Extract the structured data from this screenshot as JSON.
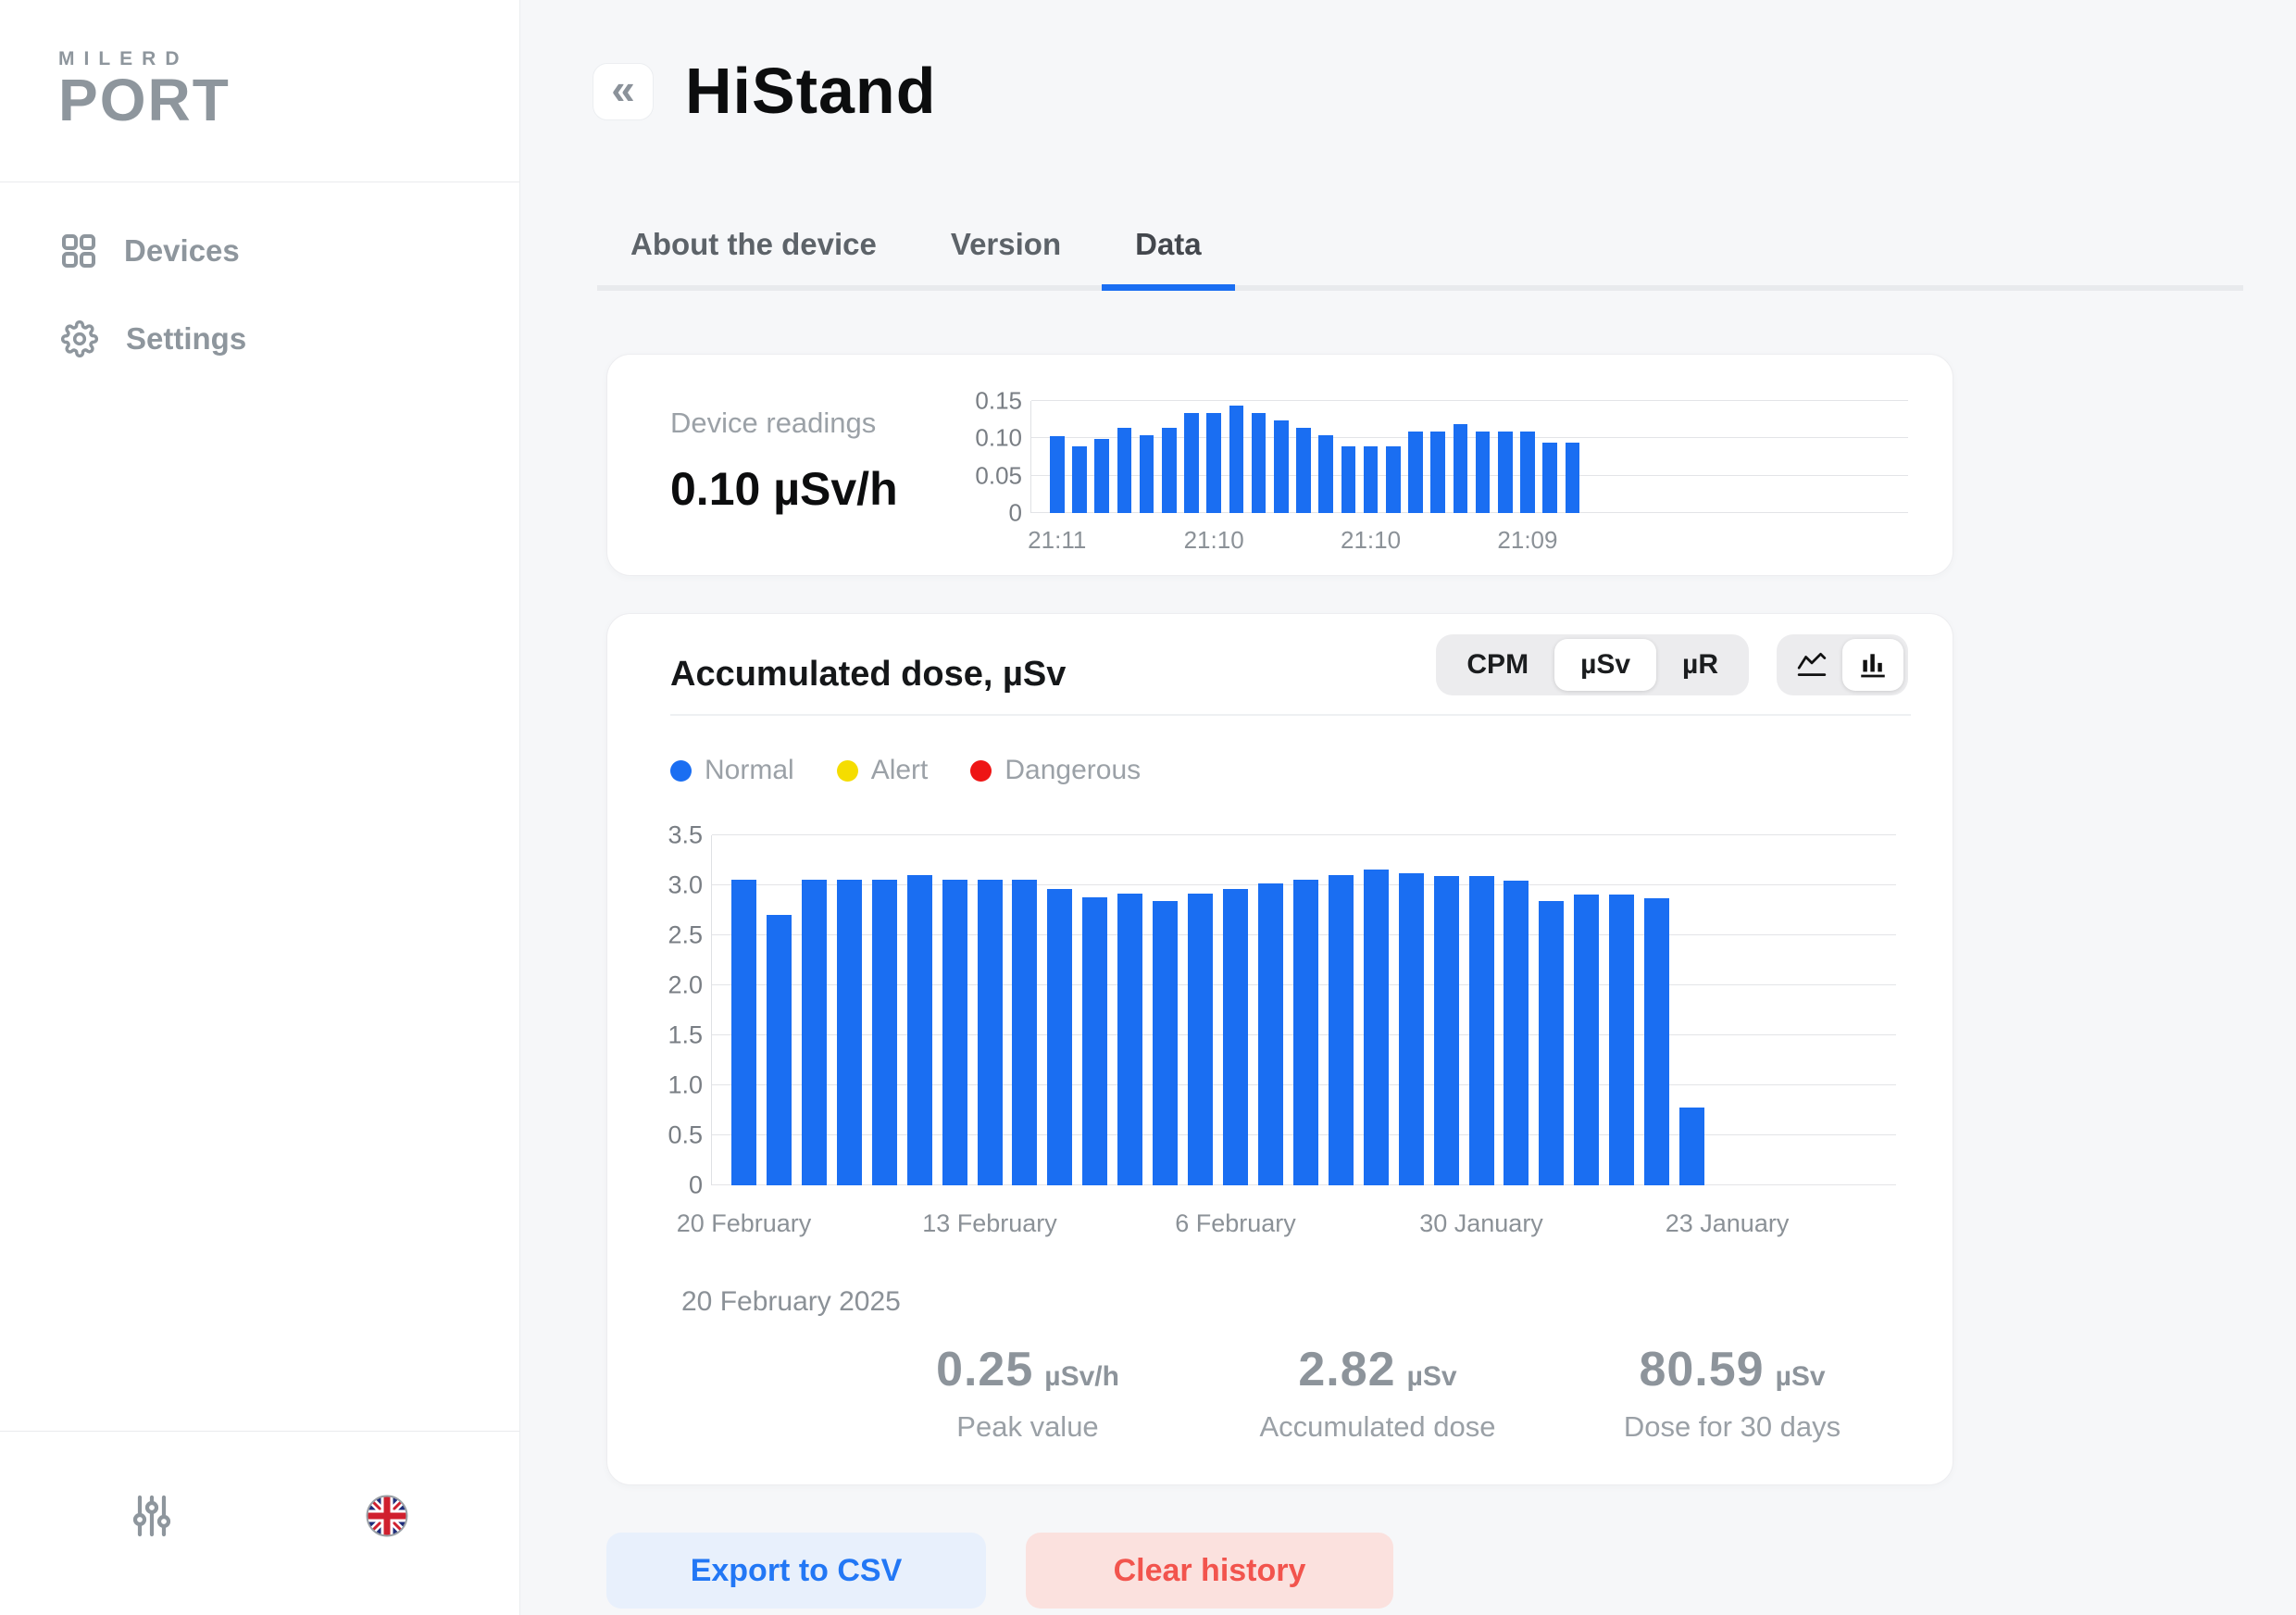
{
  "sidebar": {
    "logo_top": "MILERD",
    "logo_main": "PORT",
    "items": [
      {
        "label": "Devices",
        "icon": "grid-icon"
      },
      {
        "label": "Settings",
        "icon": "gear-icon"
      }
    ],
    "footer_icons": [
      "sliders-icon",
      "uk-flag-icon"
    ]
  },
  "header": {
    "back_icon_glyph": "«",
    "title": "HiStand"
  },
  "tabs": [
    {
      "label": "About the device",
      "active": false
    },
    {
      "label": "Version",
      "active": false
    },
    {
      "label": "Data",
      "active": true
    }
  ],
  "readings_card": {
    "label": "Device readings",
    "value": "0.10 µSv/h"
  },
  "dose_card": {
    "title": "Accumulated dose, µSv",
    "unit_toggle": [
      "CPM",
      "µSv",
      "µR"
    ],
    "unit_selected": "µSv",
    "chart_type_toggle": [
      "line-chart-icon",
      "bar-chart-icon"
    ],
    "chart_type_selected": "bar-chart-icon",
    "legend": [
      {
        "label": "Normal",
        "color": "#1a6ef2"
      },
      {
        "label": "Alert",
        "color": "#f5dd00"
      },
      {
        "label": "Dangerous",
        "color": "#ee1515"
      }
    ],
    "date": "20 February 2025",
    "stats": [
      {
        "value": "0.25",
        "unit": "µSv/h",
        "label": "Peak value"
      },
      {
        "value": "2.82",
        "unit": "µSv",
        "label": "Accumulated dose"
      },
      {
        "value": "80.59",
        "unit": "µSv",
        "label": "Dose for 30 days"
      }
    ]
  },
  "actions": {
    "export": "Export to CSV",
    "clear": "Clear history"
  },
  "colors": {
    "accent_blue": "#1a6ef2",
    "alert_yellow": "#f5dd00",
    "danger_red": "#ee1515",
    "export_btn_bg": "#e8f0fc",
    "export_btn_text": "#2277f5",
    "clear_btn_bg": "#fbe1de",
    "clear_btn_text": "#f2544d",
    "muted_text": "#9aa0a6",
    "content_bg": "#f6f7f9"
  },
  "chart_data": [
    {
      "type": "bar",
      "context": "device-readings-last-minutes",
      "ylabel": "µSv/h",
      "ylim": [
        0,
        0.15
      ],
      "y_ticks": [
        {
          "label": "0.15",
          "v": 0.15
        },
        {
          "label": "0.10",
          "v": 0.1
        },
        {
          "label": "0.05",
          "v": 0.05
        },
        {
          "label": "0",
          "v": 0
        }
      ],
      "values": [
        0.103,
        0.089,
        0.099,
        0.114,
        0.104,
        0.114,
        0.134,
        0.134,
        0.144,
        0.134,
        0.124,
        0.114,
        0.104,
        0.089,
        0.089,
        0.089,
        0.109,
        0.109,
        0.119,
        0.109,
        0.109,
        0.109,
        0.094,
        0.094
      ],
      "x_tick_labels": [
        {
          "text": "21:11",
          "slot": 0
        },
        {
          "text": "21:10",
          "slot": 7
        },
        {
          "text": "21:10",
          "slot": 14
        },
        {
          "text": "21:09",
          "slot": 21
        }
      ],
      "bar_color": "#1a6ef2",
      "grid": true,
      "legend_position": "none"
    },
    {
      "type": "bar",
      "context": "accumulated-dose-daily",
      "ylabel": "µSv",
      "ylim": [
        0,
        3.5
      ],
      "y_ticks": [
        {
          "label": "3.5",
          "v": 3.5
        },
        {
          "label": "3.0",
          "v": 3.0
        },
        {
          "label": "2.5",
          "v": 2.5
        },
        {
          "label": "2.0",
          "v": 2.0
        },
        {
          "label": "1.5",
          "v": 1.5
        },
        {
          "label": "1.0",
          "v": 1.0
        },
        {
          "label": "0.5",
          "v": 0.5
        },
        {
          "label": "0",
          "v": 0
        }
      ],
      "values": [
        3.06,
        2.7,
        3.06,
        3.06,
        3.06,
        3.1,
        3.06,
        3.06,
        3.06,
        2.96,
        2.88,
        2.92,
        2.84,
        2.92,
        2.96,
        3.02,
        3.06,
        3.1,
        3.16,
        3.12,
        3.09,
        3.09,
        3.05,
        2.84,
        2.91,
        2.91,
        2.87,
        0.78
      ],
      "x_tick_labels": [
        {
          "text": "20 February",
          "slot": 0
        },
        {
          "text": "13 February",
          "slot": 7
        },
        {
          "text": "6 February",
          "slot": 14
        },
        {
          "text": "30 January",
          "slot": 21
        },
        {
          "text": "23 January",
          "slot": 28
        }
      ],
      "bar_color": "#1a6ef2",
      "grid": true,
      "legend_position": "top-left"
    }
  ]
}
